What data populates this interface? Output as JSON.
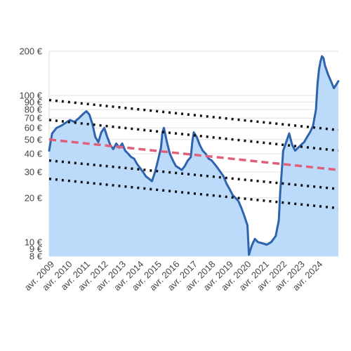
{
  "chart_data": {
    "type": "line",
    "title": "",
    "xlabel": "",
    "ylabel": "",
    "y_scale": "log",
    "ylim": [
      8,
      200
    ],
    "xlim": [
      "2009-01",
      "2025-03"
    ],
    "grid": "horizontal",
    "y_ticks": [
      {
        "value": 200,
        "label": "200 €"
      },
      {
        "value": 100,
        "label": "100 €"
      },
      {
        "value": 90,
        "label": "90 €"
      },
      {
        "value": 80,
        "label": "80 €"
      },
      {
        "value": 70,
        "label": "70 €"
      },
      {
        "value": 60,
        "label": "60 €"
      },
      {
        "value": 50,
        "label": "50 €"
      },
      {
        "value": 40,
        "label": "40 €"
      },
      {
        "value": 30,
        "label": "30 €"
      },
      {
        "value": 20,
        "label": "20 €"
      },
      {
        "value": 10,
        "label": "10 €"
      },
      {
        "value": 9,
        "label": "9 €"
      },
      {
        "value": 8,
        "label": "8 €"
      }
    ],
    "x_ticks": [
      {
        "date": "2009-01",
        "label": "avr. 2009"
      },
      {
        "date": "2010-01",
        "label": "avr. 2010"
      },
      {
        "date": "2011-01",
        "label": "avr. 2011"
      },
      {
        "date": "2012-01",
        "label": "avr. 2012"
      },
      {
        "date": "2013-01",
        "label": "avr. 2013"
      },
      {
        "date": "2014-01",
        "label": "avr. 2014"
      },
      {
        "date": "2015-01",
        "label": "avr. 2015"
      },
      {
        "date": "2016-01",
        "label": "avr. 2016"
      },
      {
        "date": "2017-01",
        "label": "avr. 2017"
      },
      {
        "date": "2018-01",
        "label": "avr. 2018"
      },
      {
        "date": "2019-01",
        "label": "avr. 2019"
      },
      {
        "date": "2020-01",
        "label": "avr. 2020"
      },
      {
        "date": "2021-01",
        "label": "avr. 2021"
      },
      {
        "date": "2022-01",
        "label": "avr. 2022"
      },
      {
        "date": "2023-01",
        "label": "avr. 2023"
      },
      {
        "date": "2024-01",
        "label": "avr. 2024"
      }
    ],
    "series": [
      {
        "kind": "price",
        "color": "#2e63ad",
        "fill": "#bcdaf9",
        "points": [
          [
            "2009-01",
            42
          ],
          [
            "2009-03",
            55
          ],
          [
            "2009-06",
            60
          ],
          [
            "2009-09",
            62
          ],
          [
            "2009-12",
            65
          ],
          [
            "2010-03",
            68
          ],
          [
            "2010-06",
            66
          ],
          [
            "2010-09",
            70
          ],
          [
            "2010-12",
            75
          ],
          [
            "2011-02",
            78
          ],
          [
            "2011-04",
            74
          ],
          [
            "2011-06",
            64
          ],
          [
            "2011-08",
            52
          ],
          [
            "2011-10",
            48
          ],
          [
            "2011-12",
            56
          ],
          [
            "2012-02",
            60
          ],
          [
            "2012-04",
            52
          ],
          [
            "2012-06",
            46
          ],
          [
            "2012-08",
            43
          ],
          [
            "2012-10",
            47
          ],
          [
            "2012-12",
            44
          ],
          [
            "2013-02",
            47
          ],
          [
            "2013-04",
            42
          ],
          [
            "2013-06",
            40
          ],
          [
            "2013-08",
            38
          ],
          [
            "2013-10",
            37
          ],
          [
            "2013-12",
            34
          ],
          [
            "2014-02",
            32
          ],
          [
            "2014-04",
            30
          ],
          [
            "2014-06",
            28
          ],
          [
            "2014-08",
            27
          ],
          [
            "2014-10",
            26
          ],
          [
            "2014-12",
            30
          ],
          [
            "2015-02",
            36
          ],
          [
            "2015-04",
            44
          ],
          [
            "2015-05",
            56
          ],
          [
            "2015-06",
            60
          ],
          [
            "2015-08",
            48
          ],
          [
            "2015-10",
            40
          ],
          [
            "2015-12",
            36
          ],
          [
            "2016-02",
            33
          ],
          [
            "2016-04",
            32
          ],
          [
            "2016-06",
            31
          ],
          [
            "2016-08",
            33
          ],
          [
            "2016-10",
            36
          ],
          [
            "2016-12",
            38
          ],
          [
            "2017-01",
            48
          ],
          [
            "2017-02",
            56
          ],
          [
            "2017-04",
            52
          ],
          [
            "2017-06",
            46
          ],
          [
            "2017-08",
            42
          ],
          [
            "2017-10",
            40
          ],
          [
            "2017-12",
            37
          ],
          [
            "2018-02",
            36
          ],
          [
            "2018-04",
            34
          ],
          [
            "2018-06",
            32
          ],
          [
            "2018-08",
            30
          ],
          [
            "2018-10",
            28
          ],
          [
            "2018-12",
            25
          ],
          [
            "2019-02",
            23
          ],
          [
            "2019-04",
            21
          ],
          [
            "2019-06",
            20
          ],
          [
            "2019-08",
            19
          ],
          [
            "2019-10",
            17
          ],
          [
            "2019-12",
            15
          ],
          [
            "2020-02",
            13
          ],
          [
            "2020-03",
            8.2
          ],
          [
            "2020-05",
            9.5
          ],
          [
            "2020-07",
            10.5
          ],
          [
            "2020-09",
            10
          ],
          [
            "2020-12",
            9.8
          ],
          [
            "2021-03",
            9.6
          ],
          [
            "2021-06",
            10
          ],
          [
            "2021-09",
            11
          ],
          [
            "2021-11",
            14
          ],
          [
            "2021-12",
            22
          ],
          [
            "2022-01",
            30
          ],
          [
            "2022-02",
            42
          ],
          [
            "2022-04",
            48
          ],
          [
            "2022-06",
            55
          ],
          [
            "2022-08",
            46
          ],
          [
            "2022-10",
            42
          ],
          [
            "2022-12",
            44
          ],
          [
            "2023-02",
            46
          ],
          [
            "2023-04",
            48
          ],
          [
            "2023-06",
            52
          ],
          [
            "2023-08",
            56
          ],
          [
            "2023-10",
            62
          ],
          [
            "2023-12",
            80
          ],
          [
            "2024-01",
            120
          ],
          [
            "2024-02",
            150
          ],
          [
            "2024-03",
            170
          ],
          [
            "2024-04",
            185
          ],
          [
            "2024-05",
            180
          ],
          [
            "2024-06",
            160
          ],
          [
            "2024-08",
            140
          ],
          [
            "2024-10",
            125
          ],
          [
            "2024-12",
            112
          ],
          [
            "2025-01",
            116
          ],
          [
            "2025-03",
            125
          ]
        ]
      },
      {
        "kind": "trend",
        "color": "#e0607a",
        "dash": "10 6",
        "points": [
          [
            "2009-01",
            50
          ],
          [
            "2025-03",
            31
          ]
        ]
      },
      {
        "kind": "channel",
        "color": "#111111",
        "dash": "3 6",
        "points": [
          [
            "2009-01",
            93
          ],
          [
            "2025-03",
            58
          ]
        ]
      },
      {
        "kind": "channel",
        "color": "#111111",
        "dash": "3 6",
        "points": [
          [
            "2009-01",
            68
          ],
          [
            "2025-03",
            42
          ]
        ]
      },
      {
        "kind": "channel",
        "color": "#111111",
        "dash": "3 6",
        "points": [
          [
            "2009-01",
            36
          ],
          [
            "2025-03",
            23
          ]
        ]
      },
      {
        "kind": "channel",
        "color": "#111111",
        "dash": "3 6",
        "points": [
          [
            "2009-01",
            27
          ],
          [
            "2025-03",
            17
          ]
        ]
      }
    ]
  }
}
